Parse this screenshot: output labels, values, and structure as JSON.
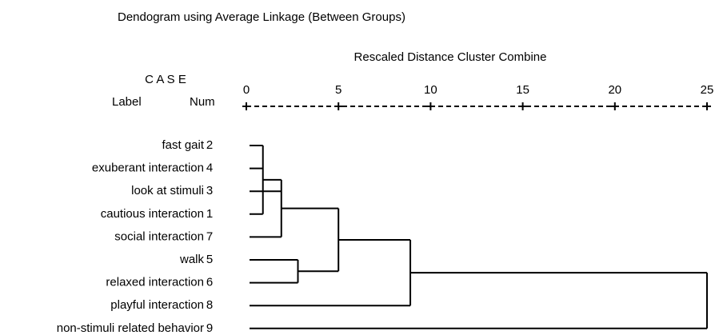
{
  "chart_data": {
    "type": "dendrogram",
    "title": "Dendogram using Average Linkage (Between Groups)",
    "xlabel": "Rescaled Distance Cluster Combine",
    "case_header": "C A S E",
    "label_header": "Label",
    "num_header": "Num",
    "xlim": [
      0,
      25
    ],
    "xticks": [
      0,
      5,
      10,
      15,
      20,
      25
    ],
    "color": "#000000",
    "leaves": [
      {
        "label": "fast gait",
        "num": 2
      },
      {
        "label": "exuberant interaction",
        "num": 4
      },
      {
        "label": "look at stimuli",
        "num": 3
      },
      {
        "label": "cautious interaction",
        "num": 1
      },
      {
        "label": "social interaction",
        "num": 7
      },
      {
        "label": "walk",
        "num": 5
      },
      {
        "label": "relaxed interaction",
        "num": 6
      },
      {
        "label": "playful interaction",
        "num": 8
      },
      {
        "label": "non-stimuli related behavior",
        "num": 9
      }
    ],
    "merges": [
      {
        "distance": 0.9,
        "leaves": [
          0,
          1,
          3
        ],
        "merges": []
      },
      {
        "distance": 1.9,
        "leaves": [
          2,
          4
        ],
        "merges": [
          0
        ]
      },
      {
        "distance": 2.8,
        "leaves": [
          5,
          6
        ],
        "merges": []
      },
      {
        "distance": 5.0,
        "leaves": [],
        "merges": [
          1,
          2
        ]
      },
      {
        "distance": 8.9,
        "leaves": [
          7
        ],
        "merges": [
          3
        ]
      },
      {
        "distance": 25,
        "leaves": [
          8
        ],
        "merges": [
          4
        ]
      }
    ]
  }
}
